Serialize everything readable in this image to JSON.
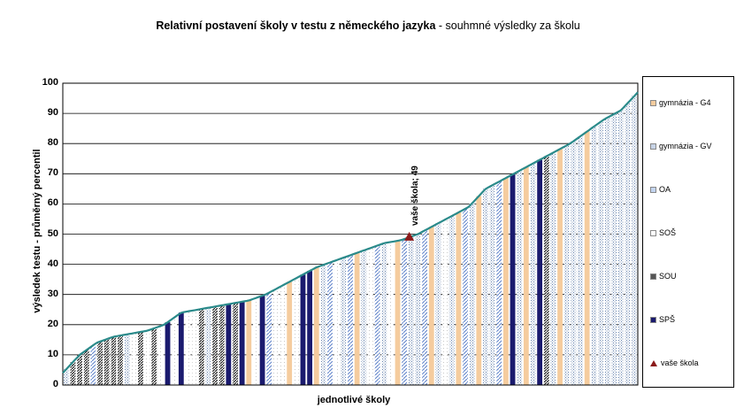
{
  "chart_data": {
    "type": "bar",
    "title_bold": "Relativní postavení školy v testu z německého jazyka",
    "title_rest": " - souhmné výsledky za školu",
    "xlabel": "jednotlivé školy",
    "ylabel": "výsledek testu - průměrný percentil",
    "ylim": [
      0,
      100
    ],
    "yticks": [
      "0",
      "10",
      "20",
      "30",
      "40",
      "50",
      "60",
      "70",
      "80",
      "90",
      "100"
    ],
    "grid": true,
    "legend_position": "right",
    "legend": [
      {
        "name": "gymnázia - G4",
        "key": "G4",
        "color": "#f5cc9e"
      },
      {
        "name": "gymnázia - GV",
        "key": "GV",
        "color": "#8fa8c8"
      },
      {
        "name": "OA",
        "key": "OA",
        "color": "#7fa0d6"
      },
      {
        "name": "SOŠ",
        "key": "SOS",
        "color": "#ffffff"
      },
      {
        "name": "SOU",
        "key": "SOU",
        "color": "#333333"
      },
      {
        "name": "SPŠ",
        "key": "SPS",
        "color": "#1a1a6e"
      },
      {
        "name": "vaše škola",
        "key": "marker",
        "color": "#8b1a1a"
      }
    ],
    "line_color": "#2a8a8a",
    "percentile_curve": [
      4,
      10,
      14,
      16,
      17,
      18,
      20,
      24,
      25,
      26,
      27,
      28,
      30,
      33,
      36,
      39,
      41,
      43,
      45,
      47,
      48,
      50,
      53,
      56,
      59,
      65,
      68,
      71,
      74,
      77,
      80,
      84,
      88,
      91,
      97
    ],
    "categories": [
      "GV",
      "SOU",
      "SOU",
      "SOU",
      "OA",
      "SOU",
      "SOU",
      "SOU",
      "SOU",
      "GV",
      "SOŠ",
      "SOU",
      "SOŠ",
      "SOU",
      "SOŠ",
      "SPŠ",
      "SOŠ",
      "SPŠ",
      "SOŠ",
      "SOŠ",
      "SOU",
      "GV",
      "SOU",
      "SOU",
      "SPŠ",
      "SOU",
      "SPŠ",
      "G4",
      "SOŠ",
      "SPŠ",
      "OA",
      "SOŠ",
      "SOŠ",
      "G4",
      "SOŠ",
      "SPŠ",
      "SPŠ",
      "G4",
      "GV",
      "OA",
      "SOŠ",
      "GV",
      "OA",
      "G4",
      "GV",
      "SOŠ",
      "OA",
      "GV",
      "SOŠ",
      "G4",
      "OA",
      "GV",
      "GV",
      "OA",
      "G4",
      "GV",
      "SOŠ",
      "GV",
      "G4",
      "OA",
      "GV",
      "G4",
      "GV",
      "GV",
      "OA",
      "G4",
      "SPŠ",
      "GV",
      "G4",
      "GV",
      "SPŠ",
      "SOU",
      "GV",
      "G4",
      "GV",
      "GV",
      "GV",
      "G4",
      "GV",
      "GV",
      "GV",
      "GV",
      "GV",
      "GV",
      "GV"
    ],
    "marker": {
      "label": "vaše škola; 49",
      "value": 49
    }
  }
}
